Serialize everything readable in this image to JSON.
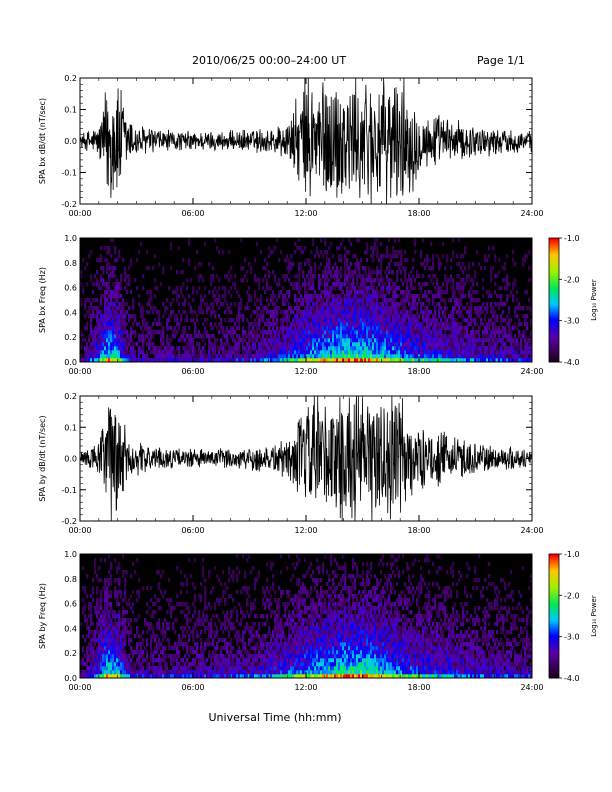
{
  "header": {
    "title": "2010/06/25  00:00–24:00 UT",
    "page": "Page 1/1"
  },
  "xaxis": {
    "label": "Universal Time (hh:mm)",
    "ticks": [
      "00:00",
      "06:00",
      "12:00",
      "18:00",
      "24:00"
    ],
    "range_hours": [
      0,
      24
    ]
  },
  "colorbar": {
    "label": "Log₁₀ Power",
    "range": [
      -4.0,
      -1.0
    ],
    "ticks": [
      "-1.0",
      "-2.0",
      "-3.0",
      "-4.0"
    ]
  },
  "chart_data": [
    {
      "type": "line",
      "ylabel": "SPA bx dB/dt (nT/sec)",
      "ylim": [
        -0.2,
        0.2
      ],
      "yticks": [
        "0.2",
        "0.1",
        "0.0",
        "-0.1",
        "-0.2"
      ],
      "x_hours": [
        0,
        1,
        1.5,
        2,
        2.5,
        3,
        4,
        5,
        6,
        7,
        8,
        9,
        10,
        11,
        11.5,
        12,
        12.5,
        13,
        14,
        15,
        16,
        17,
        17.5,
        18,
        19,
        20,
        21,
        22,
        23,
        24
      ],
      "envelope": [
        0.02,
        0.05,
        0.2,
        0.2,
        0.09,
        0.05,
        0.04,
        0.03,
        0.03,
        0.03,
        0.03,
        0.035,
        0.04,
        0.06,
        0.12,
        0.2,
        0.2,
        0.2,
        0.2,
        0.2,
        0.2,
        0.2,
        0.18,
        0.09,
        0.08,
        0.06,
        0.05,
        0.04,
        0.035,
        0.03
      ]
    },
    {
      "type": "heatmap",
      "ylabel": "SPA bx Freq (Hz)",
      "ylim": [
        0.0,
        1.0
      ],
      "yticks": [
        "1.0",
        "0.8",
        "0.6",
        "0.4",
        "0.2",
        "0.0"
      ],
      "activity_hours": [
        0,
        1,
        1.5,
        2,
        2.5,
        3,
        6,
        9,
        11,
        12,
        13,
        14,
        15,
        16,
        17,
        18,
        19,
        20,
        21,
        22,
        24
      ],
      "activity_level": [
        0.2,
        0.6,
        0.9,
        0.8,
        0.4,
        0.3,
        0.3,
        0.35,
        0.55,
        0.75,
        0.85,
        0.95,
        0.95,
        0.85,
        0.7,
        0.6,
        0.55,
        0.5,
        0.45,
        0.4,
        0.35
      ]
    },
    {
      "type": "line",
      "ylabel": "SPA by dB/dt (nT/sec)",
      "ylim": [
        -0.2,
        0.2
      ],
      "yticks": [
        "0.2",
        "0.1",
        "0.0",
        "-0.1",
        "-0.2"
      ],
      "x_hours": [
        0,
        1,
        1.5,
        2,
        2.5,
        3,
        4,
        5,
        6,
        7,
        8,
        9,
        10,
        11,
        11.5,
        12,
        12.5,
        13,
        14,
        15,
        16,
        17,
        17.5,
        18,
        19,
        20,
        21,
        22,
        23,
        24
      ],
      "envelope": [
        0.02,
        0.05,
        0.2,
        0.2,
        0.08,
        0.05,
        0.035,
        0.03,
        0.03,
        0.03,
        0.03,
        0.04,
        0.045,
        0.06,
        0.1,
        0.18,
        0.2,
        0.2,
        0.2,
        0.2,
        0.2,
        0.2,
        0.15,
        0.09,
        0.08,
        0.07,
        0.05,
        0.04,
        0.035,
        0.03
      ]
    },
    {
      "type": "heatmap",
      "ylabel": "SPA by Freq (Hz)",
      "ylim": [
        0.0,
        1.0
      ],
      "yticks": [
        "1.0",
        "0.8",
        "0.6",
        "0.4",
        "0.2",
        "0.0"
      ],
      "activity_hours": [
        0,
        1,
        1.5,
        2,
        2.5,
        3,
        6,
        9,
        11,
        12,
        13,
        14,
        15,
        16,
        17,
        18,
        19,
        20,
        21,
        22,
        24
      ],
      "activity_level": [
        0.2,
        0.6,
        0.9,
        0.8,
        0.45,
        0.35,
        0.35,
        0.4,
        0.6,
        0.75,
        0.85,
        0.95,
        0.95,
        0.85,
        0.7,
        0.6,
        0.55,
        0.5,
        0.45,
        0.4,
        0.35
      ]
    }
  ]
}
